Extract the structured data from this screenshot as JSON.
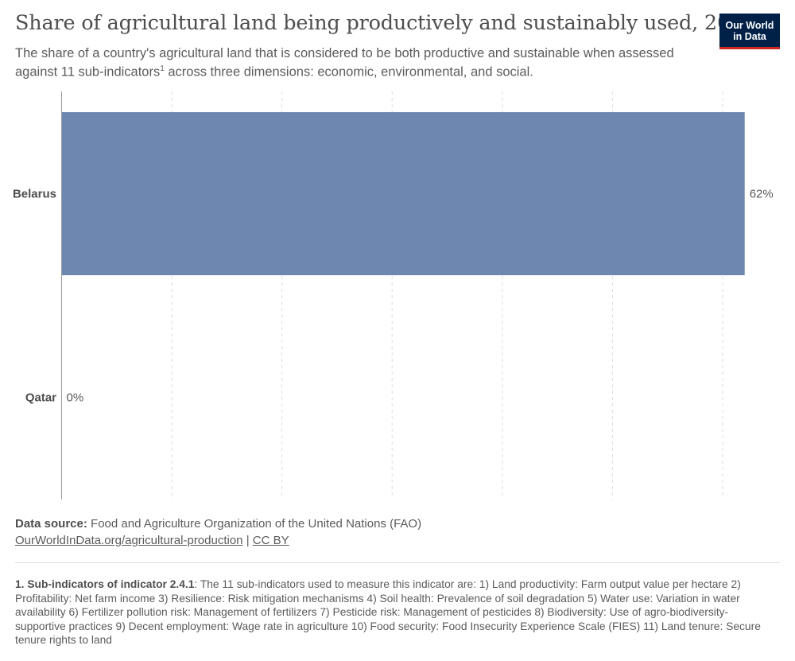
{
  "header": {
    "title": "Share of agricultural land being productively and sustainably used, 2021",
    "subtitle_pre": "The share of a country's agricultural land that is considered to be both productive and sustainable when assessed against 11 sub-indicators",
    "subtitle_sup": "1",
    "subtitle_post": " across three dimensions: economic, environmental, and social."
  },
  "logo": {
    "line1": "Our World",
    "line2": "in Data",
    "bg_color": "#002147",
    "accent_color": "#ce261e"
  },
  "chart_data": {
    "type": "bar",
    "orientation": "horizontal",
    "categories": [
      "Belarus",
      "Qatar"
    ],
    "values": [
      62,
      0
    ],
    "value_labels": [
      "62%",
      "0%"
    ],
    "xlim": [
      0,
      60
    ],
    "grid": true,
    "bar_color": "#6d87b0"
  },
  "source": {
    "label": "Data source:",
    "text": " Food and Agriculture Organization of the United Nations (FAO)",
    "link": "OurWorldInData.org/agricultural-production",
    "separator": " | ",
    "license": "CC BY"
  },
  "footnote": {
    "label": "1. Sub-indicators of indicator 2.4.1",
    "text": ": The 11 sub-indicators used to measure this indicator are: 1) Land productivity: Farm output value per hectare 2) Profitability: Net farm income 3) Resilience: Risk mitigation mechanisms 4) Soil health: Prevalence of soil degradation 5) Water use: Variation in water availability 6) Fertilizer pollution risk: Management of fertilizers 7) Pesticide risk: Management of pesticides 8) Biodiversity: Use of agro-biodiversity-supportive practices 9) Decent employment: Wage rate in agriculture 10) Food security: Food Insecurity Experience Scale (FIES) 11) Land tenure: Secure tenure rights to land"
  }
}
